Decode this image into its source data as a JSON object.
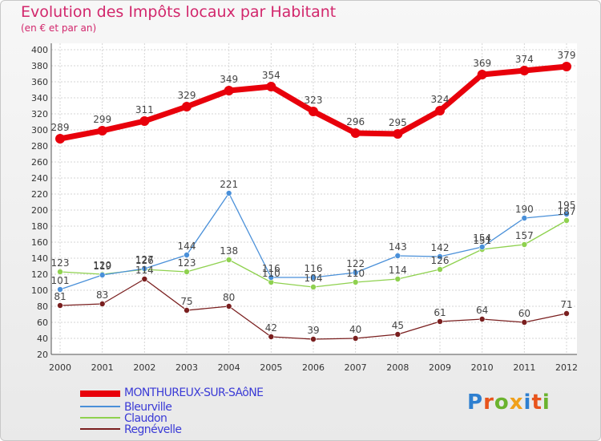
{
  "page": {
    "title": "Evolution des Impôts locaux par Habitant",
    "subtitle": "(en € et par an)"
  },
  "logo": {
    "text": "Proxiti",
    "colors": [
      "#2e7fd0",
      "#e8541c",
      "#6bb32e",
      "#f0a01a",
      "#2e7fd0",
      "#e8541c",
      "#6bb32e"
    ]
  },
  "chart_data": {
    "type": "line",
    "title": "Evolution des Impôts locaux par Habitant",
    "subtitle": "(en € et par an)",
    "x": [
      2000,
      2001,
      2002,
      2003,
      2004,
      2005,
      2006,
      2007,
      2008,
      2009,
      2010,
      2011,
      2012
    ],
    "ylim": [
      20,
      400
    ],
    "ytick_step": 20,
    "grid": true,
    "legend_position": "bottom-left",
    "series": [
      {
        "name": "MONTHUREUX-SUR-SAôNE",
        "color": "#e8000b",
        "label_color": "#3b3bd6",
        "values": [
          289,
          299,
          311,
          329,
          349,
          354,
          323,
          296,
          295,
          324,
          369,
          374,
          379
        ]
      },
      {
        "name": "Bleurville",
        "color": "#4a90d9",
        "label_color": "#3b3bd6",
        "values": [
          101,
          119,
          127,
          144,
          221,
          116,
          116,
          122,
          143,
          142,
          154,
          190,
          195
        ]
      },
      {
        "name": "Claudon",
        "color": "#8fd14f",
        "label_color": "#3b3bd6",
        "values": [
          123,
          120,
          126,
          123,
          138,
          110,
          104,
          110,
          114,
          126,
          151,
          157,
          187
        ]
      },
      {
        "name": "Regnévelle",
        "color": "#7a1f1f",
        "label_color": "#3b3bd6",
        "values": [
          81,
          83,
          114,
          75,
          80,
          42,
          39,
          40,
          45,
          61,
          64,
          60,
          71
        ]
      }
    ]
  }
}
